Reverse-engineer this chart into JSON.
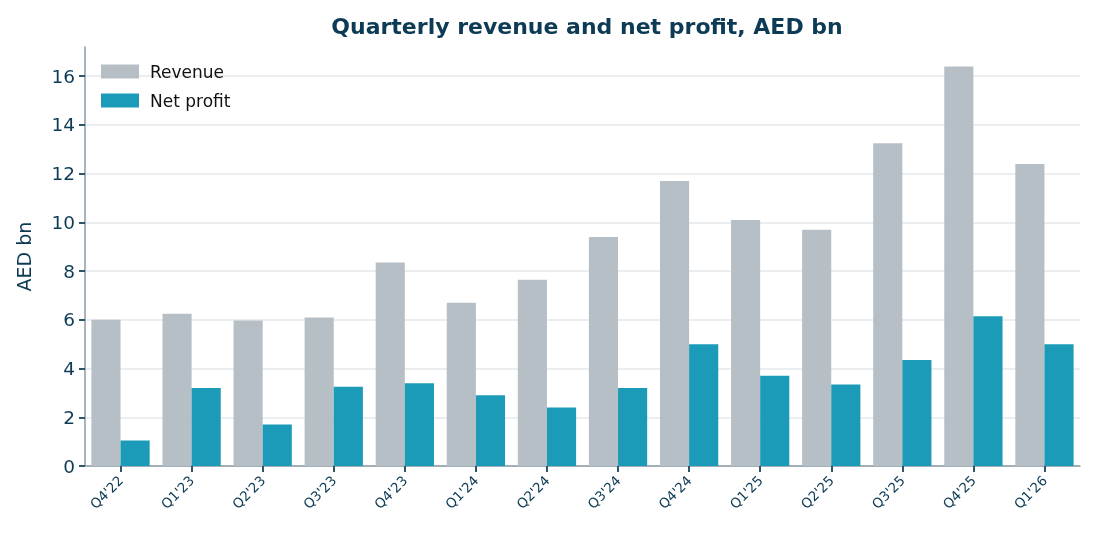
{
  "chart_data": {
    "type": "bar",
    "title": "Quarterly revenue and net profit, AED bn",
    "ylabel": "AED bn",
    "categories": [
      "Q4'22",
      "Q1'23",
      "Q2'23",
      "Q3'23",
      "Q4'23",
      "Q1'24",
      "Q2'24",
      "Q3'24",
      "Q4'24",
      "Q1'25",
      "Q2'25",
      "Q3'25",
      "Q4'25",
      "Q1'26"
    ],
    "series": [
      {
        "name": "Revenue",
        "color": "#b7bfc6",
        "values": [
          6.0,
          6.25,
          5.97,
          6.1,
          8.35,
          6.7,
          7.65,
          9.4,
          11.7,
          10.1,
          9.7,
          13.25,
          16.4,
          12.4
        ]
      },
      {
        "name": "Net profit",
        "color": "#1b9bb7",
        "values": [
          1.05,
          3.2,
          1.7,
          3.25,
          3.4,
          2.9,
          2.4,
          3.2,
          5.0,
          3.7,
          3.35,
          4.35,
          6.15,
          5.0
        ]
      }
    ],
    "ylim": [
      0,
      17.2
    ],
    "yticks": [
      0,
      2,
      4,
      6,
      8,
      10,
      12,
      14,
      16
    ],
    "grid": "y",
    "legend": "top left"
  }
}
